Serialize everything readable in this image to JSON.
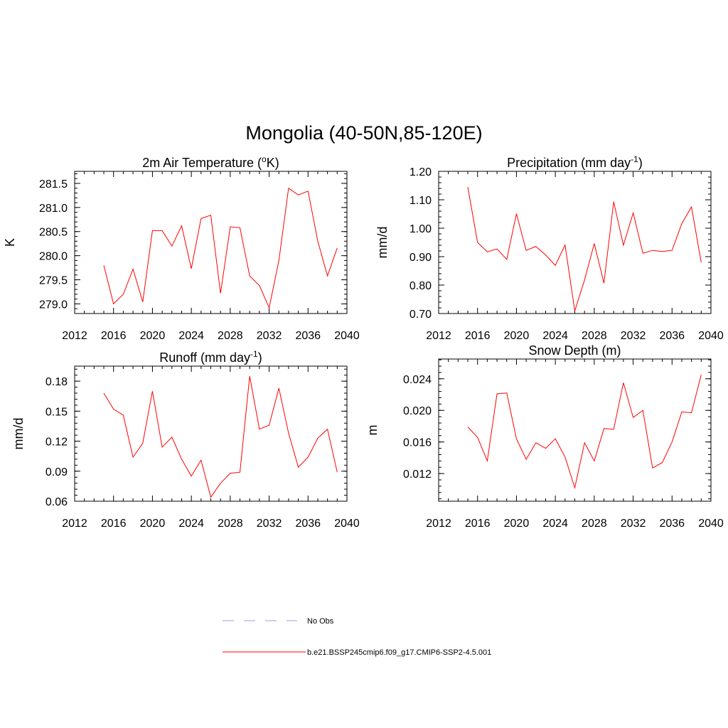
{
  "page_title": "Mongolia (40-50N,85-120E)",
  "colors": {
    "series": "#ff0000",
    "obs": "#9999ee",
    "axis": "#000000"
  },
  "legend": [
    {
      "label": "No Obs",
      "style": "dashed",
      "color": "#9999ee"
    },
    {
      "label": "b.e21.BSSP245cmip6.f09_g17.CMIP6-SSP2-4.5.001",
      "style": "solid",
      "color": "#ff0000"
    }
  ],
  "chart_data": [
    {
      "type": "line",
      "title": "2m Air Temperature (",
      "title_sup": "o",
      "title_end": "K)",
      "ylabel": "K",
      "xlim": [
        2012,
        2040
      ],
      "ylim": [
        278.8,
        281.75
      ],
      "xticks": [
        2012,
        2016,
        2020,
        2024,
        2028,
        2032,
        2036,
        2040
      ],
      "yticks": [
        279.0,
        279.5,
        280.0,
        280.5,
        281.0,
        281.5
      ],
      "ytick_labels": [
        "279.0",
        "279.5",
        "280.0",
        "280.5",
        "281.0",
        "281.5"
      ],
      "x": [
        2015,
        2016,
        2017,
        2018,
        2019,
        2020,
        2021,
        2022,
        2023,
        2024,
        2025,
        2026,
        2027,
        2028,
        2029,
        2030,
        2031,
        2032,
        2033,
        2034,
        2035,
        2036,
        2037,
        2038,
        2039
      ],
      "series": [
        {
          "values": [
            279.8,
            279.0,
            279.2,
            279.72,
            279.04,
            280.52,
            280.52,
            280.2,
            280.62,
            279.73,
            280.77,
            280.84,
            279.22,
            280.6,
            280.58,
            279.58,
            279.38,
            278.92,
            279.9,
            281.4,
            281.26,
            281.34,
            280.3,
            279.58,
            280.16
          ]
        }
      ]
    },
    {
      "type": "line",
      "title": "Precipitation (mm day",
      "title_sup": "-1",
      "title_end": ")",
      "ylabel": "mm/d",
      "xlim": [
        2012,
        2040
      ],
      "ylim": [
        0.7,
        1.2
      ],
      "xticks": [
        2012,
        2016,
        2020,
        2024,
        2028,
        2032,
        2036,
        2040
      ],
      "yticks": [
        0.7,
        0.8,
        0.9,
        1.0,
        1.1,
        1.2
      ],
      "ytick_labels": [
        "0.70",
        "0.80",
        "0.90",
        "1.00",
        "1.10",
        "1.20"
      ],
      "x": [
        2015,
        2016,
        2017,
        2018,
        2019,
        2020,
        2021,
        2022,
        2023,
        2024,
        2025,
        2026,
        2027,
        2028,
        2029,
        2030,
        2031,
        2032,
        2033,
        2034,
        2035,
        2036,
        2037,
        2038,
        2039
      ],
      "series": [
        {
          "values": [
            1.145,
            0.95,
            0.917,
            0.927,
            0.89,
            1.051,
            0.922,
            0.936,
            0.906,
            0.869,
            0.941,
            0.709,
            0.818,
            0.946,
            0.807,
            1.093,
            0.94,
            1.054,
            0.912,
            0.922,
            0.918,
            0.922,
            1.016,
            1.075,
            0.88
          ]
        }
      ]
    },
    {
      "type": "line",
      "title": "Runoff (mm day",
      "title_sup": "-1",
      "title_end": ")",
      "ylabel": "mm/d",
      "xlim": [
        2012,
        2040
      ],
      "ylim": [
        0.06,
        0.195
      ],
      "xticks": [
        2012,
        2016,
        2020,
        2024,
        2028,
        2032,
        2036,
        2040
      ],
      "yticks": [
        0.06,
        0.09,
        0.12,
        0.15,
        0.18
      ],
      "ytick_labels": [
        "0.06",
        "0.09",
        "0.12",
        "0.15",
        "0.18"
      ],
      "x": [
        2015,
        2016,
        2017,
        2018,
        2019,
        2020,
        2021,
        2022,
        2023,
        2024,
        2025,
        2026,
        2027,
        2028,
        2029,
        2030,
        2031,
        2032,
        2033,
        2034,
        2035,
        2036,
        2037,
        2038,
        2039
      ],
      "series": [
        {
          "values": [
            0.168,
            0.152,
            0.146,
            0.104,
            0.118,
            0.17,
            0.114,
            0.124,
            0.102,
            0.085,
            0.101,
            0.064,
            0.078,
            0.088,
            0.089,
            0.185,
            0.132,
            0.136,
            0.173,
            0.128,
            0.094,
            0.104,
            0.123,
            0.132,
            0.089
          ]
        }
      ]
    },
    {
      "type": "line",
      "title": "Snow Depth (m)",
      "title_sup": "",
      "title_end": "",
      "ylabel": "m",
      "xlim": [
        2012,
        2040
      ],
      "ylim": [
        0.0085,
        0.0265
      ],
      "xticks": [
        2012,
        2016,
        2020,
        2024,
        2028,
        2032,
        2036,
        2040
      ],
      "yticks": [
        0.012,
        0.016,
        0.02,
        0.024
      ],
      "ytick_labels": [
        "0.012",
        "0.016",
        "0.020",
        "0.024"
      ],
      "x": [
        2015,
        2016,
        2017,
        2018,
        2019,
        2020,
        2021,
        2022,
        2023,
        2024,
        2025,
        2026,
        2027,
        2028,
        2029,
        2030,
        2031,
        2032,
        2033,
        2034,
        2035,
        2036,
        2037,
        2038,
        2039
      ],
      "series": [
        {
          "values": [
            0.0179,
            0.0166,
            0.0136,
            0.0221,
            0.0222,
            0.0164,
            0.0138,
            0.0159,
            0.0152,
            0.0164,
            0.0141,
            0.0102,
            0.0159,
            0.0136,
            0.0177,
            0.0176,
            0.0235,
            0.0191,
            0.02,
            0.0127,
            0.0134,
            0.016,
            0.0198,
            0.0197,
            0.0245
          ]
        }
      ]
    }
  ]
}
